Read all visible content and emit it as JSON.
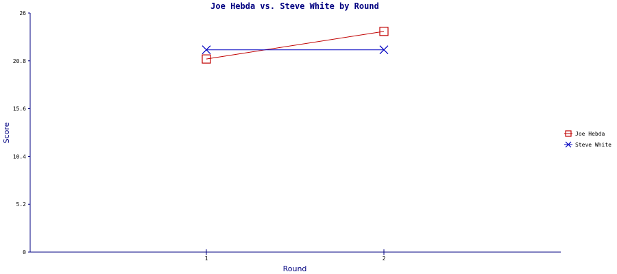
{
  "chart_data": {
    "type": "line",
    "title": "Joe Hebda vs. Steve White by Round",
    "xlabel": "Round",
    "ylabel": "Score",
    "categories": [
      "1",
      "2"
    ],
    "ylim": [
      0,
      26
    ],
    "yticks": [
      "0",
      "5.2",
      "10.4",
      "15.6",
      "20.8",
      "26"
    ],
    "grid": false,
    "legend_position": "right",
    "series": [
      {
        "name": "Joe Hebda",
        "values": [
          21,
          24
        ],
        "color": "#c00000",
        "marker": "square"
      },
      {
        "name": "Steve White",
        "values": [
          22,
          22
        ],
        "color": "#0000c0",
        "marker": "x"
      }
    ]
  }
}
